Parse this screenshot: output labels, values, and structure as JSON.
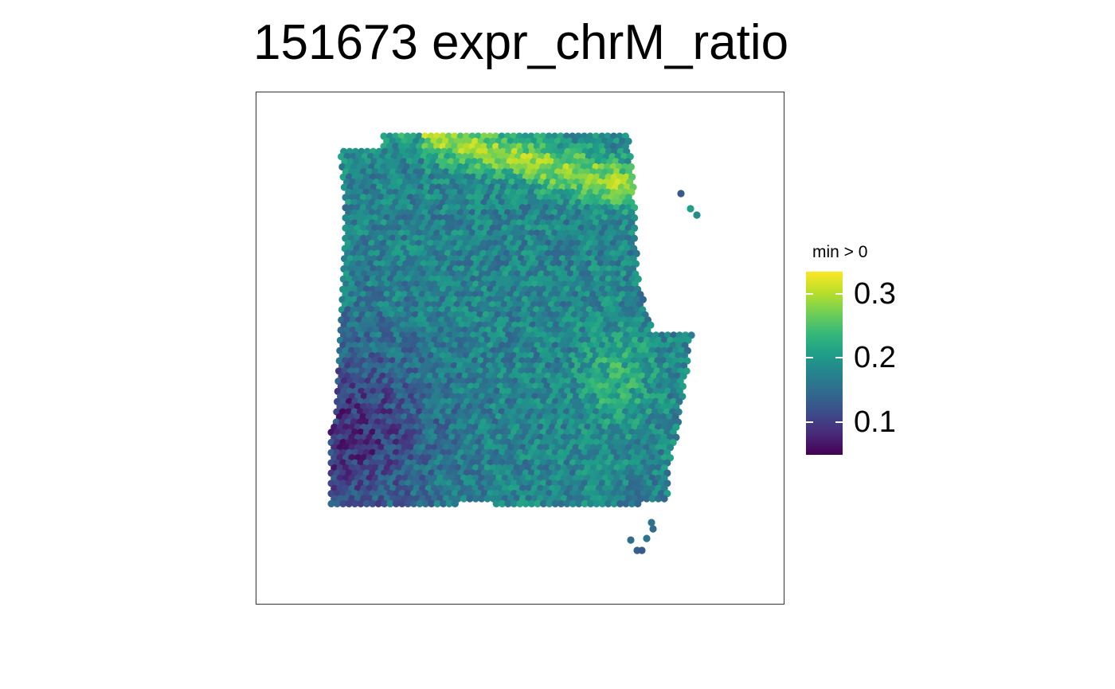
{
  "title": "151673 expr_chrM_ratio",
  "chart_data": {
    "type": "scatter",
    "title": "151673 expr_chrM_ratio",
    "xlabel": "",
    "ylabel": "",
    "axes_visible": false,
    "grid": false,
    "legend": {
      "title": "min > 0",
      "placement": "right",
      "type": "colorbar",
      "palette": "viridis",
      "range": [
        0.04,
        0.33
      ],
      "ticks": [
        0.1,
        0.2,
        0.3
      ],
      "tick_labels": [
        "0.1",
        "0.2",
        "0.3"
      ]
    },
    "value_range": [
      0.04,
      0.33
    ],
    "summary": "Spatial spot plot of tissue section; high ratio (~0.3) along upper-right border band, low ratio (~0.05) in lower-left region, mid values (~0.15-0.2) elsewhere"
  },
  "colors": {
    "low": "#440154",
    "high": "#fde725",
    "border": "#333333"
  }
}
